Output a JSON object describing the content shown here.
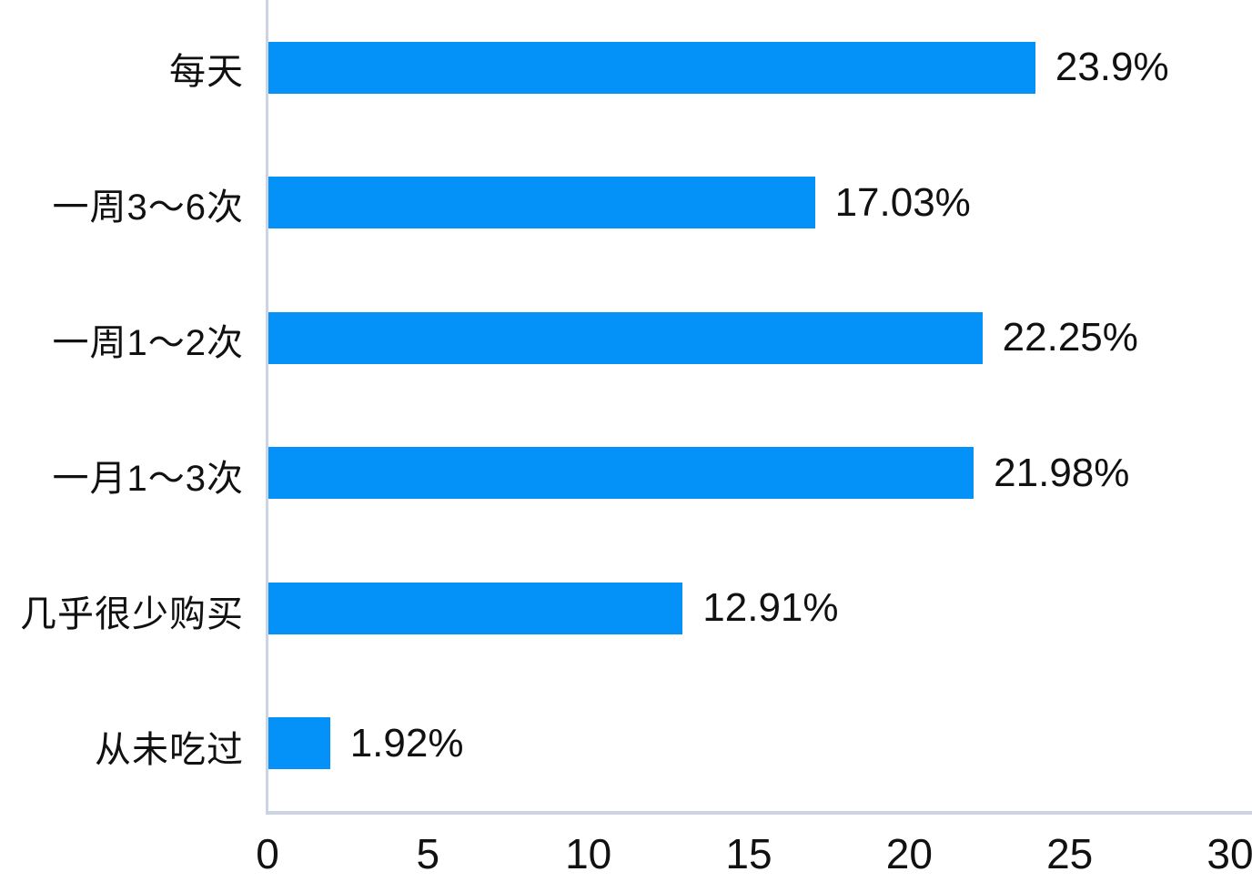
{
  "chart_data": {
    "type": "bar",
    "orientation": "horizontal",
    "title": "",
    "xlabel": "",
    "ylabel": "",
    "categories": [
      "每天",
      "一周3～6次",
      "一周1～2次",
      "一月1～3次",
      "几乎很少购买",
      "从未吃过"
    ],
    "values": [
      23.9,
      17.03,
      22.25,
      21.98,
      12.91,
      1.92
    ],
    "value_labels": [
      "23.9%",
      "17.03%",
      "22.25%",
      "21.98%",
      "12.91%",
      "1.92%"
    ],
    "xlim": [
      0,
      30
    ],
    "x_ticks": [
      0,
      5,
      10,
      15,
      20,
      25,
      30
    ],
    "grid": false,
    "legend": "none",
    "bar_color": "#0592f8",
    "axis_line_color": "#ccd3e4",
    "text_color": "#111111",
    "background_color": "#ffffff"
  }
}
